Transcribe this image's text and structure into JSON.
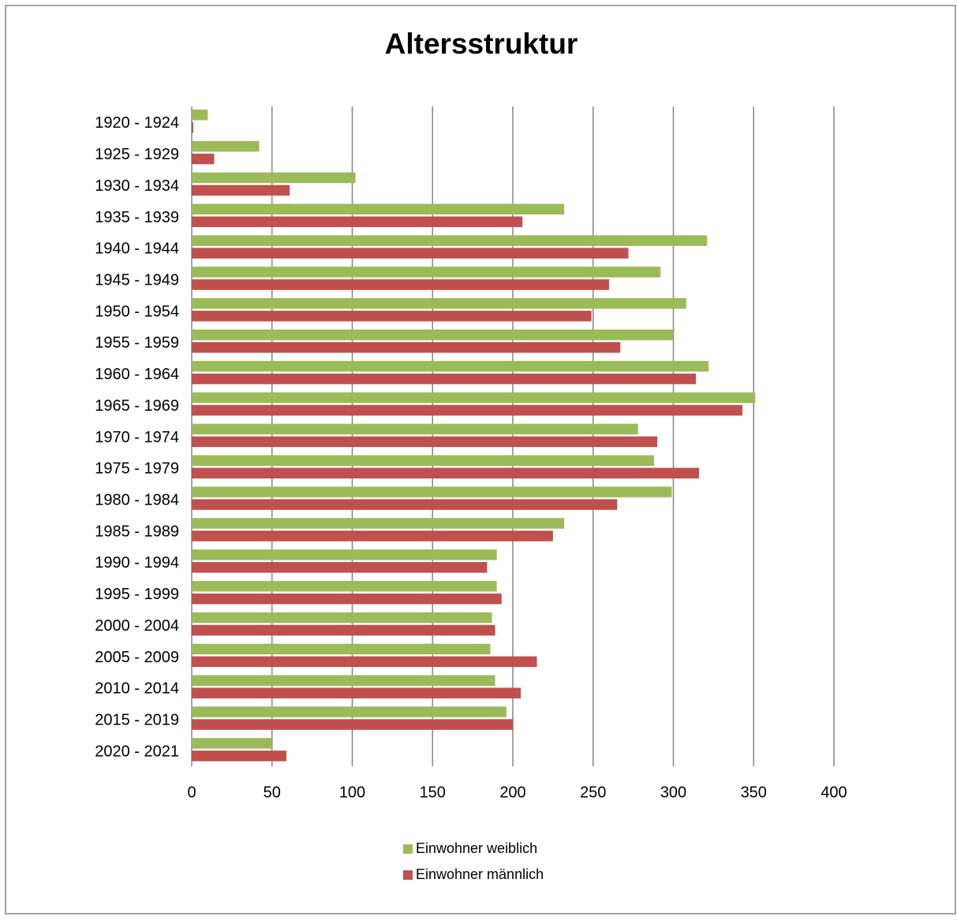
{
  "chart_data": {
    "type": "bar",
    "orientation": "horizontal",
    "title": "Altersstruktur",
    "categories": [
      "1920 - 1924",
      "1925 - 1929",
      "1930 - 1934",
      "1935 - 1939",
      "1940 - 1944",
      "1945 - 1949",
      "1950 - 1954",
      "1955 - 1959",
      "1960 - 1964",
      "1965 - 1969",
      "1970 - 1974",
      "1975 - 1979",
      "1980 - 1984",
      "1985 - 1989",
      "1990 - 1994",
      "1995 - 1999",
      "2000 - 2004",
      "2005 - 2009",
      "2010 - 2014",
      "2015 - 2019",
      "2020 - 2021"
    ],
    "series": [
      {
        "name": "Einwohner weiblich",
        "color": "#9bbb59",
        "values": [
          10,
          42,
          102,
          232,
          321,
          292,
          308,
          300,
          322,
          351,
          278,
          288,
          299,
          232,
          190,
          190,
          187,
          186,
          189,
          196,
          50
        ]
      },
      {
        "name": "Einwohner männlich",
        "color": "#c0504d",
        "values": [
          1,
          14,
          61,
          206,
          272,
          260,
          249,
          267,
          314,
          343,
          290,
          316,
          265,
          225,
          184,
          193,
          189,
          215,
          205,
          200,
          59
        ]
      }
    ],
    "xlim": [
      0,
      400
    ],
    "xticks": [
      0,
      50,
      100,
      150,
      200,
      250,
      300,
      350,
      400
    ],
    "grid": true,
    "legend": "bottom"
  }
}
